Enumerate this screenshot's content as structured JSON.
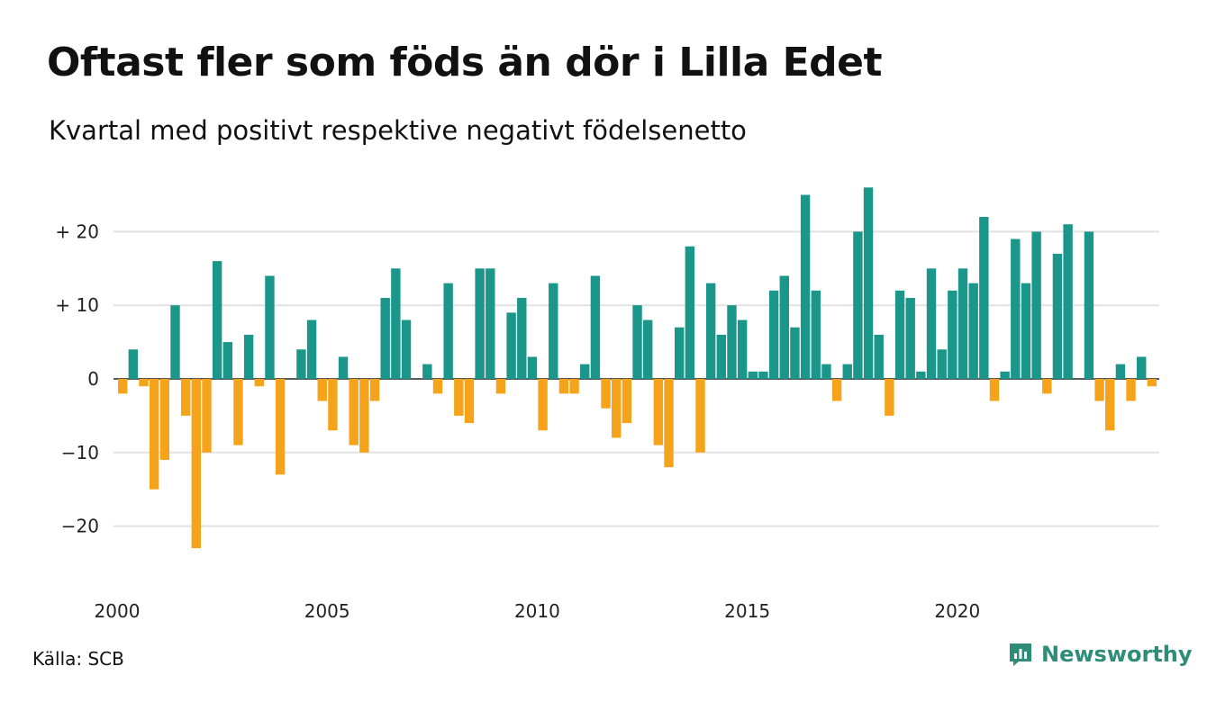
{
  "title": "Oftast fler som föds än dör i Lilla Edet",
  "subtitle": "Kvartal med positivt respektive negativt födelsenetto",
  "source": "Källa: SCB",
  "brand": {
    "name": "Newsworthy",
    "icon": "newsworthy-logo-icon",
    "color": "#2e8c78"
  },
  "chart_data": {
    "type": "bar",
    "title": "Oftast fler som föds än dör i Lilla Edet",
    "subtitle": "Kvartal med positivt respektive negativt födelsenetto",
    "x_start": "2000 Q1",
    "quarters_per_year": 4,
    "xticks": [
      {
        "label": "2000",
        "year": 2000
      },
      {
        "label": "2005",
        "year": 2005
      },
      {
        "label": "2010",
        "year": 2010
      },
      {
        "label": "2015",
        "year": 2015
      },
      {
        "label": "2020",
        "year": 2020
      }
    ],
    "yticks": [
      {
        "value": 20,
        "label": "+ 20"
      },
      {
        "value": 10,
        "label": "+ 10"
      },
      {
        "value": 0,
        "label": "0"
      },
      {
        "value": -10,
        "label": "−10"
      },
      {
        "value": -20,
        "label": "−20"
      }
    ],
    "ylim": [
      -25,
      27
    ],
    "grid": true,
    "colors": {
      "positive": "#1a968a",
      "negative": "#f5a31a",
      "grid": "#e2e2e2",
      "axis": "#222222"
    },
    "values": [
      -2,
      4,
      -1,
      -15,
      -11,
      10,
      -5,
      -23,
      -10,
      16,
      5,
      -9,
      6,
      -1,
      14,
      -13,
      0,
      4,
      8,
      -3,
      -7,
      3,
      -9,
      -10,
      -3,
      11,
      15,
      8,
      0,
      2,
      -2,
      13,
      -5,
      -6,
      15,
      15,
      -2,
      9,
      11,
      3,
      -7,
      13,
      -2,
      -2,
      2,
      14,
      -4,
      -8,
      -6,
      10,
      8,
      -9,
      -12,
      7,
      18,
      -10,
      13,
      6,
      10,
      8,
      1,
      1,
      12,
      14,
      7,
      25,
      12,
      2,
      -3,
      2,
      20,
      26,
      6,
      -5,
      12,
      11,
      1,
      15,
      4,
      12,
      15,
      13,
      22,
      -3,
      1,
      19,
      13,
      20,
      -2,
      17,
      21,
      0,
      20,
      -3,
      -7,
      2,
      -3,
      3,
      -1
    ]
  }
}
